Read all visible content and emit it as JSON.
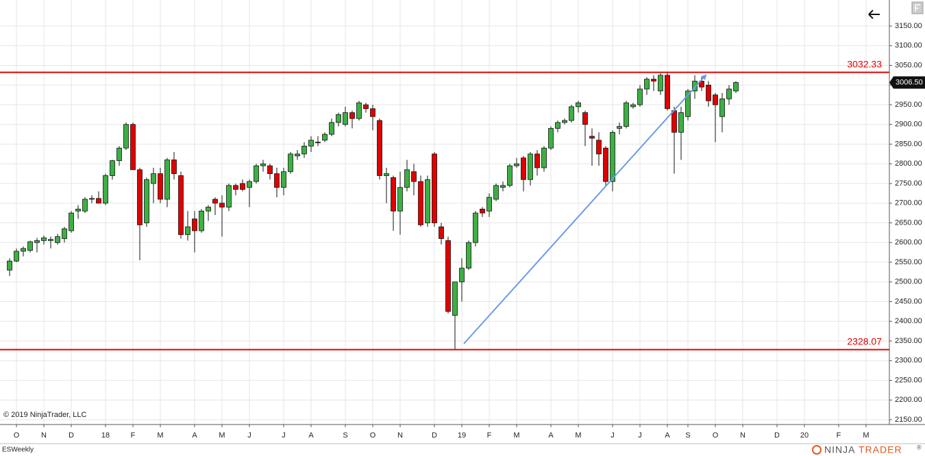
{
  "chart_data": {
    "type": "candlestick",
    "instrument": "ESWeekly",
    "copyright": "© 2019 NinjaTrader, LLC",
    "logo": {
      "left": "NINJA",
      "right": "TRADER",
      "mark": "®"
    },
    "up_color": "#3cb043",
    "down_color": "#e00000",
    "open": [
      2530,
      2553,
      2578,
      2580,
      2600,
      2605,
      2605,
      2600,
      2610,
      2630,
      2680,
      2680,
      2710,
      2712,
      2700,
      2770,
      2808,
      2840,
      2900,
      2785,
      2650,
      2750,
      2775,
      2710,
      2810,
      2770,
      2620,
      2660,
      2630,
      2680,
      2710,
      2700,
      2690,
      2745,
      2750,
      2740,
      2755,
      2795,
      2795,
      2775,
      2740,
      2780,
      2820,
      2825,
      2845,
      2855,
      2860,
      2875,
      2905,
      2900,
      2930,
      2915,
      2950,
      2940,
      2910,
      2770,
      2765,
      2680,
      2740,
      2780,
      2755,
      2650,
      2825,
      2640,
      2605,
      2415,
      2500,
      2535,
      2600,
      2685,
      2680,
      2710,
      2740,
      2745,
      2795,
      2815,
      2760,
      2825,
      2790,
      2840,
      2890,
      2905,
      2910,
      2945,
      2930,
      2870,
      2860,
      2840,
      2755,
      2890,
      2895,
      2945,
      2950,
      2990,
      3015,
      2985,
      3025,
      2935,
      2880,
      2920,
      2985,
      3010,
      3000,
      2975,
      2920,
      2965,
      2985
    ],
    "high": [
      2560,
      2585,
      2590,
      2605,
      2612,
      2618,
      2615,
      2622,
      2640,
      2680,
      2695,
      2715,
      2720,
      2730,
      2775,
      2810,
      2845,
      2905,
      2905,
      2790,
      2765,
      2790,
      2790,
      2815,
      2830,
      2780,
      2680,
      2680,
      2685,
      2695,
      2715,
      2720,
      2750,
      2750,
      2760,
      2760,
      2800,
      2810,
      2800,
      2790,
      2790,
      2830,
      2835,
      2855,
      2870,
      2870,
      2880,
      2915,
      2930,
      2945,
      2935,
      2960,
      2955,
      2950,
      2915,
      2790,
      2770,
      2780,
      2810,
      2800,
      2770,
      2770,
      2830,
      2650,
      2615,
      2500,
      2560,
      2605,
      2680,
      2690,
      2725,
      2750,
      2755,
      2800,
      2815,
      2820,
      2830,
      2835,
      2845,
      2895,
      2910,
      2915,
      2950,
      2960,
      2935,
      2890,
      2880,
      2845,
      2885,
      2905,
      2960,
      2955,
      3000,
      3020,
      3025,
      3030,
      3032,
      2945,
      2945,
      2990,
      3025,
      3020,
      3010,
      2980,
      2980,
      3000,
      3010
    ],
    "low": [
      2515,
      2550,
      2565,
      2575,
      2575,
      2595,
      2585,
      2595,
      2600,
      2625,
      2660,
      2675,
      2700,
      2700,
      2695,
      2760,
      2795,
      2835,
      2785,
      2555,
      2640,
      2700,
      2700,
      2690,
      2760,
      2610,
      2605,
      2575,
      2625,
      2655,
      2670,
      2615,
      2680,
      2720,
      2730,
      2690,
      2750,
      2780,
      2760,
      2715,
      2720,
      2775,
      2810,
      2815,
      2830,
      2845,
      2855,
      2870,
      2895,
      2895,
      2890,
      2910,
      2930,
      2885,
      2760,
      2700,
      2630,
      2620,
      2730,
      2720,
      2640,
      2640,
      2640,
      2595,
      2420,
      2328,
      2450,
      2530,
      2590,
      2665,
      2665,
      2705,
      2730,
      2740,
      2790,
      2730,
      2745,
      2770,
      2780,
      2835,
      2880,
      2900,
      2905,
      2930,
      2845,
      2795,
      2795,
      2745,
      2730,
      2875,
      2890,
      2940,
      2945,
      2975,
      2985,
      2975,
      2935,
      2775,
      2810,
      2910,
      2965,
      2985,
      2945,
      2855,
      2880,
      2950,
      2980
    ],
    "close": [
      2553,
      2578,
      2585,
      2602,
      2605,
      2612,
      2608,
      2615,
      2635,
      2675,
      2685,
      2710,
      2712,
      2700,
      2770,
      2808,
      2840,
      2900,
      2785,
      2645,
      2760,
      2775,
      2710,
      2810,
      2775,
      2620,
      2640,
      2630,
      2680,
      2690,
      2700,
      2690,
      2745,
      2735,
      2735,
      2755,
      2795,
      2800,
      2775,
      2740,
      2780,
      2825,
      2825,
      2845,
      2860,
      2855,
      2875,
      2905,
      2925,
      2930,
      2915,
      2955,
      2940,
      2920,
      2770,
      2775,
      2680,
      2740,
      2785,
      2755,
      2645,
      2760,
      2650,
      2610,
      2425,
      2500,
      2535,
      2600,
      2675,
      2675,
      2715,
      2745,
      2745,
      2795,
      2800,
      2760,
      2825,
      2790,
      2840,
      2890,
      2905,
      2910,
      2945,
      2955,
      2900,
      2865,
      2825,
      2755,
      2880,
      2895,
      2955,
      2950,
      2990,
      3015,
      3010,
      3025,
      2940,
      2880,
      2930,
      2985,
      3010,
      2995,
      2960,
      2950,
      2965,
      2990,
      3006.5
    ],
    "levels": [
      {
        "value": 3032.33,
        "color": "#e00000"
      },
      {
        "value": 2328.07,
        "color": "#e00000"
      }
    ],
    "last_price": {
      "value": 3006.5,
      "label": "3006.50"
    },
    "trendline": {
      "color": "#6a9be6",
      "x": [
        66.3,
        101.6
      ],
      "y": [
        2343,
        3025
      ]
    },
    "xlim": [
      -1.4,
      128.4
    ],
    "xticks": [
      {
        "value": 1,
        "label": "O"
      },
      {
        "value": 5,
        "label": "N"
      },
      {
        "value": 9,
        "label": "D"
      },
      {
        "value": 14,
        "label": "18"
      },
      {
        "value": 18,
        "label": "F"
      },
      {
        "value": 22,
        "label": "M"
      },
      {
        "value": 27,
        "label": "A"
      },
      {
        "value": 31,
        "label": "M"
      },
      {
        "value": 35,
        "label": "J"
      },
      {
        "value": 40,
        "label": "J"
      },
      {
        "value": 44,
        "label": "A"
      },
      {
        "value": 49,
        "label": "S"
      },
      {
        "value": 53,
        "label": "O"
      },
      {
        "value": 57,
        "label": "N"
      },
      {
        "value": 62,
        "label": "D"
      },
      {
        "value": 66,
        "label": "19"
      },
      {
        "value": 70,
        "label": "F"
      },
      {
        "value": 74,
        "label": "M"
      },
      {
        "value": 79,
        "label": "A"
      },
      {
        "value": 83,
        "label": "M"
      },
      {
        "value": 88,
        "label": "J"
      },
      {
        "value": 92,
        "label": "J"
      },
      {
        "value": 96,
        "label": "A"
      },
      {
        "value": 99,
        "label": "S"
      },
      {
        "value": 103,
        "label": "O"
      },
      {
        "value": 107,
        "label": "N"
      },
      {
        "value": 112,
        "label": "D"
      },
      {
        "value": 116,
        "label": "20"
      },
      {
        "value": 121,
        "label": "F"
      },
      {
        "value": 125,
        "label": "M"
      }
    ],
    "ylim": [
      2137.8,
      3216.1
    ],
    "yticks": [
      {
        "value": 2150,
        "label": "2150.00"
      },
      {
        "value": 2200,
        "label": "2200.00"
      },
      {
        "value": 2250,
        "label": "2250.00"
      },
      {
        "value": 2300,
        "label": "2300.00"
      },
      {
        "value": 2350,
        "label": "2350.00"
      },
      {
        "value": 2400,
        "label": "2400.00"
      },
      {
        "value": 2450,
        "label": "2450.00"
      },
      {
        "value": 2500,
        "label": "2500.00"
      },
      {
        "value": 2550,
        "label": "2550.00"
      },
      {
        "value": 2600,
        "label": "2600.00"
      },
      {
        "value": 2650,
        "label": "2650.00"
      },
      {
        "value": 2700,
        "label": "2700.00"
      },
      {
        "value": 2750,
        "label": "2750.00"
      },
      {
        "value": 2800,
        "label": "2800.00"
      },
      {
        "value": 2850,
        "label": "2850.00"
      },
      {
        "value": 2900,
        "label": "2900.00"
      },
      {
        "value": 2950,
        "label": "2950.00"
      },
      {
        "value": 3000,
        "label": "3000.00"
      },
      {
        "value": 3050,
        "label": "3050.00"
      },
      {
        "value": 3100,
        "label": "3100.00"
      },
      {
        "value": 3150,
        "label": "3150.00"
      }
    ],
    "grid": true
  }
}
